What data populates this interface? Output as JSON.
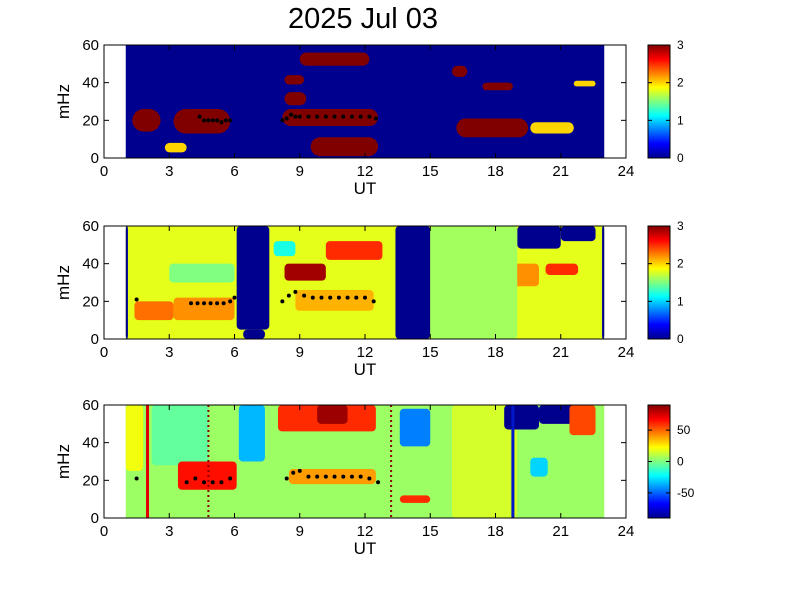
{
  "title": "2025 Jul 03",
  "chart_data": [
    {
      "type": "heatmap",
      "xlabel": "UT",
      "ylabel": "mHz",
      "xlim": [
        0,
        24
      ],
      "ylim": [
        0,
        60
      ],
      "xticks": [
        0,
        3,
        6,
        9,
        12,
        15,
        18,
        21,
        24
      ],
      "yticks": [
        0,
        20,
        40,
        60
      ],
      "data_range_ut": [
        1,
        23
      ],
      "colorbar": {
        "range": [
          0,
          3
        ],
        "ticks": [
          0,
          1,
          2,
          3
        ]
      },
      "background_value": 0,
      "regions": [
        {
          "x": [
            1.3,
            2.6
          ],
          "y": [
            14,
            26
          ],
          "value": 3
        },
        {
          "x": [
            3.2,
            5.8
          ],
          "y": [
            13,
            26
          ],
          "value": 3
        },
        {
          "x": [
            2.8,
            3.8
          ],
          "y": [
            3,
            8
          ],
          "value": 2
        },
        {
          "x": [
            8.3,
            9.2
          ],
          "y": [
            39,
            44
          ],
          "value": 3
        },
        {
          "x": [
            8.3,
            9.3
          ],
          "y": [
            28,
            35
          ],
          "value": 3
        },
        {
          "x": [
            8.2,
            12.6
          ],
          "y": [
            17,
            26
          ],
          "value": 3
        },
        {
          "x": [
            9.5,
            12.6
          ],
          "y": [
            1,
            11
          ],
          "value": 3
        },
        {
          "x": [
            9.0,
            12.2
          ],
          "y": [
            49,
            56
          ],
          "value": 3
        },
        {
          "x": [
            16.0,
            16.7
          ],
          "y": [
            43,
            49
          ],
          "value": 3
        },
        {
          "x": [
            17.4,
            18.8
          ],
          "y": [
            36,
            40
          ],
          "value": 3
        },
        {
          "x": [
            16.2,
            19.5
          ],
          "y": [
            11,
            21
          ],
          "value": 3
        },
        {
          "x": [
            19.6,
            21.6
          ],
          "y": [
            13,
            19
          ],
          "value": 2
        },
        {
          "x": [
            21.6,
            22.6
          ],
          "y": [
            38,
            41
          ],
          "value": 2
        }
      ],
      "markers": {
        "color": "#000000",
        "points": [
          [
            4.4,
            22
          ],
          [
            4.6,
            20
          ],
          [
            4.8,
            20
          ],
          [
            5.0,
            20
          ],
          [
            5.2,
            20
          ],
          [
            5.4,
            19
          ],
          [
            5.6,
            20
          ],
          [
            5.8,
            20
          ],
          [
            8.2,
            20
          ],
          [
            8.4,
            21
          ],
          [
            8.6,
            23
          ],
          [
            8.8,
            22
          ],
          [
            9.0,
            22
          ],
          [
            9.4,
            22
          ],
          [
            9.8,
            22
          ],
          [
            10.2,
            22
          ],
          [
            10.6,
            22
          ],
          [
            11.0,
            22
          ],
          [
            11.4,
            22
          ],
          [
            11.8,
            22
          ],
          [
            12.2,
            22
          ],
          [
            12.5,
            21
          ]
        ]
      }
    },
    {
      "type": "heatmap",
      "xlabel": "UT",
      "ylabel": "mHz",
      "xlim": [
        0,
        24
      ],
      "ylim": [
        0,
        60
      ],
      "xticks": [
        0,
        3,
        6,
        9,
        12,
        15,
        18,
        21,
        24
      ],
      "yticks": [
        0,
        20,
        40,
        60
      ],
      "data_range_ut": [
        1,
        23
      ],
      "colorbar": {
        "range": [
          0,
          3
        ],
        "ticks": [
          0,
          1,
          2,
          3
        ]
      },
      "background_value": 1.8,
      "regions": [
        {
          "x": [
            1.0,
            1.1
          ],
          "y": [
            0,
            60
          ],
          "value": 0
        },
        {
          "x": [
            6.1,
            7.6
          ],
          "y": [
            5,
            60
          ],
          "value": 0
        },
        {
          "x": [
            6.4,
            7.4
          ],
          "y": [
            0,
            5
          ],
          "value": 0
        },
        {
          "x": [
            13.4,
            15.0
          ],
          "y": [
            0,
            60
          ],
          "value": 0
        },
        {
          "x": [
            22.9,
            23.0
          ],
          "y": [
            0,
            60
          ],
          "value": 0
        },
        {
          "x": [
            19.0,
            21.0
          ],
          "y": [
            48,
            60
          ],
          "value": 0
        },
        {
          "x": [
            21.0,
            22.6
          ],
          "y": [
            52,
            60
          ],
          "value": 0
        },
        {
          "x": [
            1.4,
            3.2
          ],
          "y": [
            10,
            20
          ],
          "value": 2.3
        },
        {
          "x": [
            3.2,
            6.0
          ],
          "y": [
            10,
            22
          ],
          "value": 2.2
        },
        {
          "x": [
            8.3,
            10.2
          ],
          "y": [
            31,
            40
          ],
          "value": 2.9
        },
        {
          "x": [
            10.2,
            12.8
          ],
          "y": [
            42,
            52
          ],
          "value": 2.5
        },
        {
          "x": [
            8.8,
            12.4
          ],
          "y": [
            15,
            26
          ],
          "value": 2.1
        },
        {
          "x": [
            18.6,
            20.0
          ],
          "y": [
            28,
            40
          ],
          "value": 2.2
        },
        {
          "x": [
            20.3,
            21.8
          ],
          "y": [
            34,
            40
          ],
          "value": 2.5
        },
        {
          "x": [
            7.8,
            8.8
          ],
          "y": [
            44,
            52
          ],
          "value": 1.2
        },
        {
          "x": [
            3.0,
            6.0
          ],
          "y": [
            30,
            40
          ],
          "value": 1.5
        },
        {
          "x": [
            15.0,
            19.0
          ],
          "y": [
            0,
            60
          ],
          "value": 1.6
        }
      ],
      "markers": {
        "color": "#000000",
        "points": [
          [
            1.5,
            21
          ],
          [
            4.0,
            19
          ],
          [
            4.3,
            19
          ],
          [
            4.6,
            19
          ],
          [
            4.9,
            19
          ],
          [
            5.2,
            19
          ],
          [
            5.5,
            19
          ],
          [
            5.8,
            20
          ],
          [
            6.0,
            22
          ],
          [
            8.2,
            20
          ],
          [
            8.5,
            23
          ],
          [
            8.8,
            25
          ],
          [
            9.2,
            23
          ],
          [
            9.6,
            22
          ],
          [
            10.0,
            22
          ],
          [
            10.4,
            22
          ],
          [
            10.8,
            22
          ],
          [
            11.2,
            22
          ],
          [
            11.6,
            22
          ],
          [
            12.0,
            22
          ],
          [
            12.4,
            20
          ]
        ]
      }
    },
    {
      "type": "heatmap",
      "xlabel": "UT",
      "ylabel": "mHz",
      "xlim": [
        0,
        24
      ],
      "ylim": [
        0,
        60
      ],
      "xticks": [
        0,
        3,
        6,
        9,
        12,
        15,
        18,
        21,
        24
      ],
      "yticks": [
        0,
        20,
        40,
        60
      ],
      "data_range_ut": [
        1,
        23
      ],
      "colorbar": {
        "range": [
          -90,
          90
        ],
        "ticks": [
          50,
          0,
          -50
        ]
      },
      "background_value": 5,
      "regions": [
        {
          "x": [
            1.0,
            1.8
          ],
          "y": [
            25,
            60
          ],
          "value": 20
        },
        {
          "x": [
            2.2,
            4.8
          ],
          "y": [
            28,
            60
          ],
          "value": -5
        },
        {
          "x": [
            3.4,
            6.1
          ],
          "y": [
            15,
            30
          ],
          "value": 65
        },
        {
          "x": [
            6.2,
            7.4
          ],
          "y": [
            30,
            60
          ],
          "value": -35
        },
        {
          "x": [
            8.0,
            12.5
          ],
          "y": [
            46,
            60
          ],
          "value": 60
        },
        {
          "x": [
            9.8,
            11.2
          ],
          "y": [
            50,
            60
          ],
          "value": 85
        },
        {
          "x": [
            8.5,
            12.5
          ],
          "y": [
            18,
            26
          ],
          "value": 40
        },
        {
          "x": [
            13.6,
            15.0
          ],
          "y": [
            38,
            58
          ],
          "value": -45
        },
        {
          "x": [
            13.6,
            15.0
          ],
          "y": [
            8,
            12
          ],
          "value": 60
        },
        {
          "x": [
            16.0,
            19.0
          ],
          "y": [
            0,
            60
          ],
          "value": 15
        },
        {
          "x": [
            18.4,
            20.0
          ],
          "y": [
            47,
            60
          ],
          "value": -90
        },
        {
          "x": [
            20.0,
            21.6
          ],
          "y": [
            50,
            60
          ],
          "value": -90
        },
        {
          "x": [
            21.4,
            22.6
          ],
          "y": [
            44,
            60
          ],
          "value": 55
        },
        {
          "x": [
            19.6,
            20.4
          ],
          "y": [
            22,
            32
          ],
          "value": -30
        }
      ],
      "lines": [
        {
          "x": 2.0,
          "color": "#e00000",
          "style": "solid"
        },
        {
          "x": 4.8,
          "color": "#8b0000",
          "style": "dotted"
        },
        {
          "x": 13.2,
          "color": "#8b0000",
          "style": "dotted"
        },
        {
          "x": 18.8,
          "color": "#0018c8",
          "style": "solid"
        }
      ],
      "markers": {
        "color": "#000000",
        "points": [
          [
            1.5,
            21
          ],
          [
            3.8,
            19
          ],
          [
            4.2,
            21
          ],
          [
            4.6,
            19
          ],
          [
            5.0,
            19
          ],
          [
            5.4,
            19
          ],
          [
            5.8,
            21
          ],
          [
            8.4,
            21
          ],
          [
            8.7,
            24
          ],
          [
            9.0,
            25
          ],
          [
            9.4,
            22
          ],
          [
            9.8,
            22
          ],
          [
            10.2,
            22
          ],
          [
            10.6,
            22
          ],
          [
            11.0,
            22
          ],
          [
            11.4,
            22
          ],
          [
            11.8,
            22
          ],
          [
            12.2,
            21
          ],
          [
            12.6,
            19
          ]
        ]
      }
    }
  ]
}
